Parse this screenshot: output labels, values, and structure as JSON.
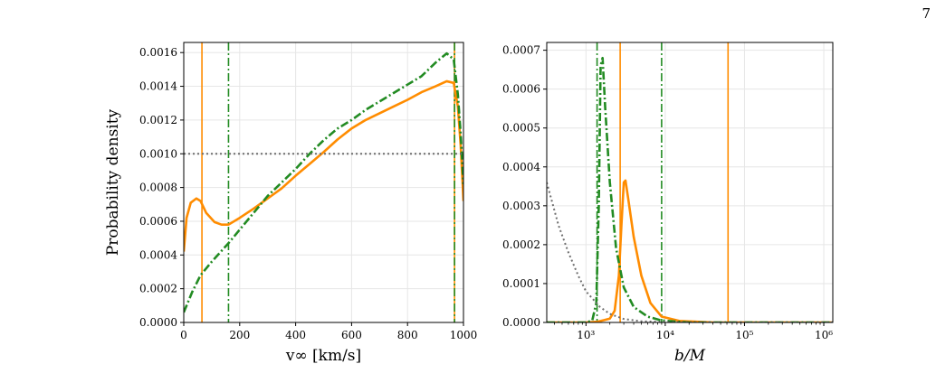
{
  "page_number": "7",
  "figure_caption_fragment": "",
  "colors": {
    "orange": "#ff8c00",
    "green": "#228b22",
    "grey": "#6e6e6e",
    "grid": "#e6e6e6"
  },
  "chart_data": [
    {
      "type": "line",
      "title": "",
      "xlabel": "v∞ [km/s]",
      "ylabel": "Probability density",
      "xlim": [
        0,
        1000
      ],
      "ylim": [
        0,
        0.00166
      ],
      "xscale": "linear",
      "grid": true,
      "x_ticks": [
        0,
        200,
        400,
        600,
        800,
        1000
      ],
      "x_tick_labels": [
        "0",
        "200",
        "400",
        "600",
        "800",
        "1000"
      ],
      "y_ticks": [
        0,
        0.0002,
        0.0004,
        0.0006,
        0.0008,
        0.001,
        0.0012,
        0.0014,
        0.0016
      ],
      "y_tick_labels": [
        "0.0000",
        "0.0002",
        "0.0004",
        "0.0006",
        "0.0008",
        "0.0010",
        "0.0012",
        "0.0014",
        "0.0016"
      ],
      "series": [
        {
          "style": "solid",
          "color": "#ff8c00",
          "points": [
            [
              0,
              0.00042
            ],
            [
              10,
              0.00062
            ],
            [
              25,
              0.00071
            ],
            [
              45,
              0.000735
            ],
            [
              60,
              0.00072
            ],
            [
              80,
              0.00065
            ],
            [
              110,
              0.000595
            ],
            [
              135,
              0.00058
            ],
            [
              160,
              0.00058
            ],
            [
              200,
              0.00062
            ],
            [
              250,
              0.000675
            ],
            [
              300,
              0.000735
            ],
            [
              350,
              0.000795
            ],
            [
              400,
              0.00087
            ],
            [
              450,
              0.00094
            ],
            [
              500,
              0.00101
            ],
            [
              550,
              0.001085
            ],
            [
              600,
              0.00115
            ],
            [
              650,
              0.0012
            ],
            [
              700,
              0.00124
            ],
            [
              750,
              0.00128
            ],
            [
              800,
              0.00132
            ],
            [
              850,
              0.001365
            ],
            [
              900,
              0.0014
            ],
            [
              940,
              0.00143
            ],
            [
              965,
              0.00142
            ],
            [
              980,
              0.00128
            ],
            [
              990,
              0.00105
            ],
            [
              1000,
              0.00072
            ]
          ]
        },
        {
          "style": "dashdot",
          "color": "#228b22",
          "points": [
            [
              0,
              6e-05
            ],
            [
              30,
              0.00018
            ],
            [
              60,
              0.00028
            ],
            [
              100,
              0.00036
            ],
            [
              160,
              0.00047
            ],
            [
              200,
              0.00055
            ],
            [
              250,
              0.00065
            ],
            [
              300,
              0.00075
            ],
            [
              350,
              0.00083
            ],
            [
              400,
              0.00091
            ],
            [
              450,
              0.001
            ],
            [
              500,
              0.00108
            ],
            [
              550,
              0.00115
            ],
            [
              600,
              0.0012
            ],
            [
              650,
              0.00126
            ],
            [
              700,
              0.00131
            ],
            [
              750,
              0.00136
            ],
            [
              800,
              0.00141
            ],
            [
              850,
              0.00146
            ],
            [
              900,
              0.00154
            ],
            [
              940,
              0.001595
            ],
            [
              965,
              0.00156
            ],
            [
              980,
              0.00135
            ],
            [
              990,
              0.00112
            ],
            [
              1000,
              0.00082
            ]
          ]
        },
        {
          "style": "dotted",
          "color": "#6e6e6e",
          "points": [
            [
              0,
              0.001
            ],
            [
              1000,
              0.001
            ]
          ]
        }
      ],
      "vlines": [
        {
          "x": 65,
          "style": "solid",
          "color": "#ff8c00"
        },
        {
          "x": 160,
          "style": "dashdot",
          "color": "#228b22"
        },
        {
          "x": 968,
          "style": "solid",
          "color": "#ff8c00"
        },
        {
          "x": 968,
          "style": "dashdot",
          "color": "#228b22"
        }
      ]
    },
    {
      "type": "line",
      "title": "",
      "xlabel": "b/M",
      "ylabel": "",
      "xscale": "log",
      "xlim": [
        320,
        1300000
      ],
      "ylim": [
        0,
        0.00072
      ],
      "grid": true,
      "x_ticks": [
        1000,
        10000,
        100000,
        1000000
      ],
      "x_tick_labels": [
        "10³",
        "10⁴",
        "10⁵",
        "10⁶"
      ],
      "y_ticks": [
        0,
        0.0001,
        0.0002,
        0.0003,
        0.0004,
        0.0005,
        0.0006,
        0.0007
      ],
      "y_tick_labels": [
        "0.0000",
        "0.0001",
        "0.0002",
        "0.0003",
        "0.0004",
        "0.0005",
        "0.0006",
        "0.0007"
      ],
      "series": [
        {
          "style": "solid",
          "color": "#ff8c00",
          "points": [
            [
              320,
              0
            ],
            [
              1000,
              0
            ],
            [
              1400,
              2e-06
            ],
            [
              1700,
              6e-06
            ],
            [
              2000,
              1e-05
            ],
            [
              2300,
              3e-05
            ],
            [
              2600,
              0.00012
            ],
            [
              2800,
              0.00025
            ],
            [
              3000,
              0.00036
            ],
            [
              3150,
              0.000365
            ],
            [
              3400,
              0.00032
            ],
            [
              4000,
              0.00022
            ],
            [
              5000,
              0.00012
            ],
            [
              6500,
              5e-05
            ],
            [
              9000,
              1.5e-05
            ],
            [
              15000,
              4e-06
            ],
            [
              40000,
              0
            ],
            [
              1300000,
              0
            ]
          ]
        },
        {
          "style": "dashdot",
          "color": "#228b22",
          "points": [
            [
              320,
              0
            ],
            [
              1000,
              0
            ],
            [
              1200,
              5e-06
            ],
            [
              1350,
              5e-05
            ],
            [
              1450,
              0.0003
            ],
            [
              1530,
              0.00066
            ],
            [
              1620,
              0.00068
            ],
            [
              1750,
              0.00055
            ],
            [
              2000,
              0.00036
            ],
            [
              2400,
              0.00019
            ],
            [
              3000,
              9e-05
            ],
            [
              4000,
              4e-05
            ],
            [
              6000,
              1.5e-05
            ],
            [
              9000,
              5e-06
            ],
            [
              20000,
              0
            ],
            [
              1300000,
              0
            ]
          ]
        },
        {
          "style": "dotted",
          "color": "#6e6e6e",
          "points": [
            [
              320,
              0.00036
            ],
            [
              450,
              0.00025
            ],
            [
              600,
              0.00018
            ],
            [
              800,
              0.00012
            ],
            [
              1000,
              8e-05
            ],
            [
              1500,
              4e-05
            ],
            [
              2000,
              2.2e-05
            ],
            [
              3000,
              9e-06
            ],
            [
              5000,
              3e-06
            ],
            [
              10000,
              1e-06
            ],
            [
              50000,
              0
            ],
            [
              1300000,
              0
            ]
          ]
        }
      ],
      "vlines": [
        {
          "x": 1380,
          "style": "dashdot",
          "color": "#228b22"
        },
        {
          "x": 2700,
          "style": "solid",
          "color": "#ff8c00"
        },
        {
          "x": 9000,
          "style": "dashdot",
          "color": "#228b22"
        },
        {
          "x": 62000,
          "style": "solid",
          "color": "#ff8c00"
        }
      ]
    }
  ]
}
